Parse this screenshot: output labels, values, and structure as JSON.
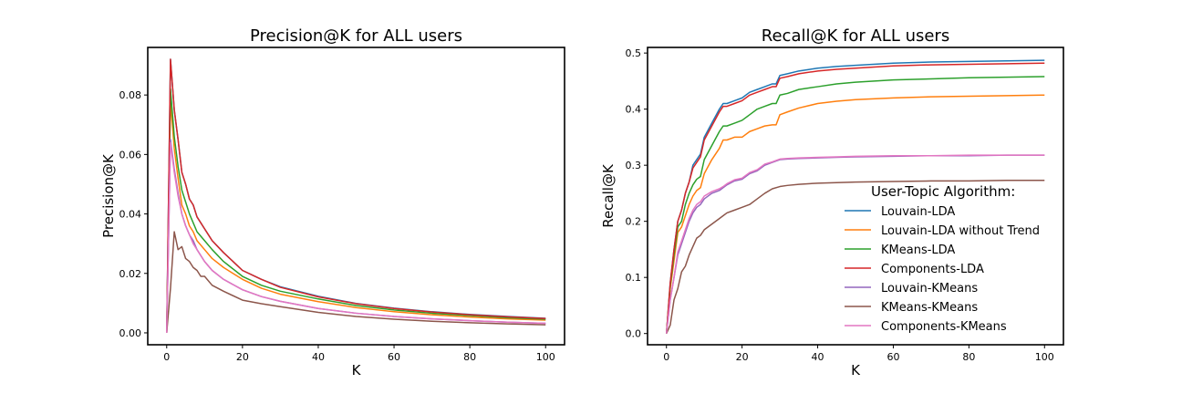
{
  "chart_data": [
    {
      "type": "line",
      "title": "Precision@K for ALL users",
      "xlabel": "K",
      "ylabel": "Precision@K",
      "xlim": [
        -5,
        105
      ],
      "ylim": [
        -0.004,
        0.096
      ],
      "xticks": [
        0,
        20,
        40,
        60,
        80,
        100
      ],
      "yticks": [
        0.0,
        0.02,
        0.04,
        0.06,
        0.08
      ],
      "ytick_labels": [
        "0.00",
        "0.02",
        "0.04",
        "0.06",
        "0.08"
      ],
      "grid": false,
      "legend": null,
      "series": [
        {
          "name": "Louvain-LDA",
          "color": "#1f77b4",
          "x": [
            0,
            1,
            2,
            3,
            4,
            5,
            6,
            7,
            8,
            10,
            12,
            15,
            20,
            25,
            30,
            40,
            50,
            60,
            70,
            80,
            90,
            100
          ],
          "y": [
            0.0,
            0.092,
            0.075,
            0.065,
            0.054,
            0.05,
            0.045,
            0.043,
            0.039,
            0.035,
            0.031,
            0.027,
            0.021,
            0.018,
            0.0155,
            0.0123,
            0.0099,
            0.0083,
            0.0071,
            0.0062,
            0.0055,
            0.0049
          ]
        },
        {
          "name": "Louvain-LDA without Trend",
          "color": "#ff7f0e",
          "x": [
            0,
            1,
            2,
            3,
            4,
            5,
            6,
            7,
            8,
            10,
            12,
            15,
            20,
            25,
            30,
            40,
            50,
            60,
            70,
            80,
            90,
            100
          ],
          "y": [
            0.0,
            0.078,
            0.062,
            0.052,
            0.043,
            0.04,
            0.036,
            0.034,
            0.031,
            0.028,
            0.025,
            0.022,
            0.018,
            0.015,
            0.013,
            0.0105,
            0.0085,
            0.0071,
            0.0061,
            0.0053,
            0.0047,
            0.0043
          ]
        },
        {
          "name": "KMeans-LDA",
          "color": "#2ca02c",
          "x": [
            0,
            1,
            2,
            3,
            4,
            5,
            6,
            7,
            8,
            10,
            12,
            15,
            20,
            25,
            30,
            40,
            50,
            60,
            70,
            80,
            90,
            100
          ],
          "y": [
            0.0,
            0.082,
            0.066,
            0.056,
            0.048,
            0.044,
            0.04,
            0.037,
            0.034,
            0.031,
            0.028,
            0.024,
            0.019,
            0.016,
            0.014,
            0.0114,
            0.0092,
            0.0077,
            0.0066,
            0.0058,
            0.0051,
            0.0046
          ]
        },
        {
          "name": "Components-LDA",
          "color": "#d62728",
          "x": [
            0,
            1,
            2,
            3,
            4,
            5,
            6,
            7,
            8,
            10,
            12,
            15,
            20,
            25,
            30,
            40,
            50,
            60,
            70,
            80,
            90,
            100
          ],
          "y": [
            0.0,
            0.092,
            0.075,
            0.065,
            0.054,
            0.05,
            0.045,
            0.043,
            0.039,
            0.035,
            0.031,
            0.027,
            0.021,
            0.018,
            0.0153,
            0.0121,
            0.0098,
            0.0082,
            0.007,
            0.0061,
            0.0054,
            0.0048
          ]
        },
        {
          "name": "Louvain-KMeans",
          "color": "#9467bd",
          "x": [
            0,
            1,
            2,
            3,
            4,
            5,
            6,
            7,
            8,
            10,
            12,
            15,
            20,
            25,
            30,
            40,
            50,
            60,
            70,
            80,
            90,
            100
          ],
          "y": [
            0.0,
            0.065,
            0.055,
            0.047,
            0.04,
            0.036,
            0.033,
            0.031,
            0.028,
            0.024,
            0.021,
            0.018,
            0.0145,
            0.0122,
            0.0106,
            0.0082,
            0.0066,
            0.0055,
            0.0047,
            0.0041,
            0.0036,
            0.0032
          ]
        },
        {
          "name": "KMeans-KMeans",
          "color": "#8c564b",
          "x": [
            0,
            1,
            2,
            3,
            4,
            5,
            6,
            7,
            8,
            9,
            10,
            12,
            15,
            20,
            25,
            30,
            40,
            50,
            60,
            70,
            80,
            90,
            100
          ],
          "y": [
            0.0,
            0.015,
            0.034,
            0.028,
            0.029,
            0.025,
            0.024,
            0.022,
            0.021,
            0.019,
            0.019,
            0.016,
            0.014,
            0.011,
            0.0098,
            0.0088,
            0.0069,
            0.0055,
            0.0046,
            0.0039,
            0.0034,
            0.003,
            0.0027
          ]
        },
        {
          "name": "Components-KMeans",
          "color": "#e377c2",
          "x": [
            0,
            1,
            2,
            3,
            4,
            5,
            6,
            7,
            8,
            10,
            12,
            15,
            20,
            25,
            30,
            40,
            50,
            60,
            70,
            80,
            90,
            100
          ],
          "y": [
            0.0,
            0.064,
            0.054,
            0.046,
            0.04,
            0.036,
            0.033,
            0.03,
            0.028,
            0.024,
            0.021,
            0.018,
            0.0145,
            0.0122,
            0.0106,
            0.0082,
            0.0066,
            0.0055,
            0.0047,
            0.0041,
            0.0036,
            0.0032
          ]
        }
      ]
    },
    {
      "type": "line",
      "title": "Recall@K for ALL users",
      "xlabel": "K",
      "ylabel": "Recall@K",
      "xlim": [
        -5,
        105
      ],
      "ylim": [
        -0.02,
        0.51
      ],
      "xticks": [
        0,
        20,
        40,
        60,
        80,
        100
      ],
      "yticks": [
        0.0,
        0.1,
        0.2,
        0.3,
        0.4,
        0.5
      ],
      "ytick_labels": [
        "0.0",
        "0.1",
        "0.2",
        "0.3",
        "0.4",
        "0.5"
      ],
      "grid": false,
      "legend": {
        "title": "User-Topic Algorithm:",
        "placement": "lower-right"
      },
      "series": [
        {
          "name": "Louvain-LDA",
          "color": "#1f77b4",
          "x": [
            0,
            1,
            2,
            3,
            4,
            5,
            6,
            7,
            8,
            9,
            10,
            12,
            14,
            15,
            16,
            18,
            20,
            22,
            24,
            26,
            28,
            29,
            30,
            32,
            35,
            40,
            45,
            50,
            60,
            70,
            80,
            90,
            100
          ],
          "y": [
            0.0,
            0.09,
            0.15,
            0.2,
            0.22,
            0.25,
            0.27,
            0.3,
            0.31,
            0.32,
            0.35,
            0.375,
            0.4,
            0.41,
            0.41,
            0.415,
            0.42,
            0.43,
            0.435,
            0.44,
            0.445,
            0.445,
            0.46,
            0.463,
            0.468,
            0.473,
            0.476,
            0.478,
            0.482,
            0.484,
            0.485,
            0.486,
            0.487
          ]
        },
        {
          "name": "Louvain-LDA without Trend",
          "color": "#ff7f0e",
          "x": [
            0,
            1,
            2,
            3,
            4,
            5,
            6,
            7,
            8,
            9,
            10,
            12,
            14,
            15,
            16,
            18,
            20,
            22,
            24,
            26,
            28,
            29,
            30,
            32,
            35,
            40,
            45,
            50,
            60,
            70,
            80,
            90,
            100
          ],
          "y": [
            0.0,
            0.08,
            0.13,
            0.18,
            0.19,
            0.21,
            0.23,
            0.245,
            0.255,
            0.26,
            0.285,
            0.31,
            0.33,
            0.345,
            0.345,
            0.35,
            0.35,
            0.36,
            0.365,
            0.37,
            0.372,
            0.372,
            0.39,
            0.395,
            0.402,
            0.41,
            0.414,
            0.417,
            0.42,
            0.422,
            0.423,
            0.424,
            0.425
          ]
        },
        {
          "name": "KMeans-LDA",
          "color": "#2ca02c",
          "x": [
            0,
            1,
            2,
            3,
            4,
            5,
            6,
            7,
            8,
            9,
            10,
            12,
            14,
            15,
            16,
            18,
            20,
            22,
            24,
            26,
            28,
            29,
            30,
            32,
            35,
            40,
            45,
            50,
            60,
            70,
            80,
            90,
            100
          ],
          "y": [
            0.0,
            0.085,
            0.14,
            0.19,
            0.2,
            0.23,
            0.25,
            0.265,
            0.275,
            0.28,
            0.31,
            0.335,
            0.36,
            0.37,
            0.37,
            0.375,
            0.38,
            0.39,
            0.4,
            0.405,
            0.41,
            0.41,
            0.425,
            0.428,
            0.435,
            0.44,
            0.445,
            0.448,
            0.452,
            0.454,
            0.456,
            0.457,
            0.458
          ]
        },
        {
          "name": "Components-LDA",
          "color": "#d62728",
          "x": [
            0,
            1,
            2,
            3,
            4,
            5,
            6,
            7,
            8,
            9,
            10,
            12,
            14,
            15,
            16,
            18,
            20,
            22,
            24,
            26,
            28,
            29,
            30,
            32,
            35,
            40,
            45,
            50,
            60,
            70,
            80,
            90,
            100
          ],
          "y": [
            0.0,
            0.09,
            0.15,
            0.2,
            0.22,
            0.25,
            0.27,
            0.295,
            0.305,
            0.315,
            0.345,
            0.37,
            0.395,
            0.405,
            0.405,
            0.41,
            0.415,
            0.425,
            0.43,
            0.435,
            0.44,
            0.44,
            0.455,
            0.458,
            0.463,
            0.468,
            0.471,
            0.473,
            0.477,
            0.479,
            0.48,
            0.481,
            0.482
          ]
        },
        {
          "name": "Louvain-KMeans",
          "color": "#9467bd",
          "x": [
            0,
            1,
            2,
            3,
            4,
            5,
            6,
            7,
            8,
            9,
            10,
            12,
            14,
            15,
            16,
            18,
            20,
            22,
            24,
            26,
            28,
            30,
            32,
            35,
            40,
            45,
            50,
            60,
            70,
            80,
            90,
            100
          ],
          "y": [
            0.0,
            0.06,
            0.1,
            0.14,
            0.16,
            0.18,
            0.2,
            0.215,
            0.225,
            0.23,
            0.24,
            0.25,
            0.255,
            0.26,
            0.265,
            0.272,
            0.275,
            0.285,
            0.29,
            0.3,
            0.305,
            0.31,
            0.311,
            0.312,
            0.313,
            0.314,
            0.315,
            0.316,
            0.317,
            0.317,
            0.318,
            0.318
          ]
        },
        {
          "name": "KMeans-KMeans",
          "color": "#8c564b",
          "x": [
            0,
            1,
            2,
            3,
            4,
            5,
            6,
            7,
            8,
            9,
            10,
            12,
            14,
            15,
            16,
            18,
            20,
            22,
            24,
            26,
            28,
            30,
            32,
            35,
            40,
            45,
            50,
            60,
            70,
            80,
            90,
            100
          ],
          "y": [
            0.0,
            0.015,
            0.06,
            0.08,
            0.11,
            0.12,
            0.14,
            0.155,
            0.17,
            0.175,
            0.185,
            0.195,
            0.205,
            0.21,
            0.215,
            0.22,
            0.225,
            0.23,
            0.24,
            0.25,
            0.258,
            0.262,
            0.264,
            0.266,
            0.268,
            0.269,
            0.27,
            0.271,
            0.272,
            0.272,
            0.273,
            0.273
          ]
        },
        {
          "name": "Components-KMeans",
          "color": "#e377c2",
          "x": [
            0,
            1,
            2,
            3,
            4,
            5,
            6,
            7,
            8,
            9,
            10,
            12,
            14,
            15,
            16,
            18,
            20,
            22,
            24,
            26,
            28,
            30,
            32,
            35,
            40,
            45,
            50,
            60,
            70,
            80,
            90,
            100
          ],
          "y": [
            0.0,
            0.06,
            0.1,
            0.145,
            0.165,
            0.185,
            0.205,
            0.22,
            0.23,
            0.235,
            0.245,
            0.253,
            0.258,
            0.262,
            0.267,
            0.274,
            0.277,
            0.287,
            0.292,
            0.302,
            0.306,
            0.311,
            0.312,
            0.313,
            0.314,
            0.315,
            0.316,
            0.317,
            0.317,
            0.318,
            0.318,
            0.318
          ]
        }
      ]
    }
  ]
}
